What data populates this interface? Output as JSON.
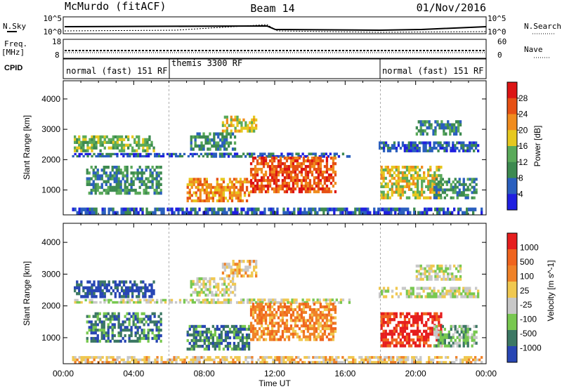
{
  "header": {
    "site": "McMurdo (fitACF)",
    "beam": "Beam 14",
    "date": "01/Nov/2016"
  },
  "summary_panels": {
    "nsky_label": "N.Sky",
    "nsearch_label": "N.Search",
    "nsky_ticks": [
      "10^5",
      "10^0"
    ],
    "nsearch_ticks": [
      "10^5",
      "10^0"
    ],
    "freq_label": "Freq.",
    "freq_unit": "[MHz]",
    "freq_ticks": [
      "18",
      "8"
    ],
    "nave_label": "Nave",
    "nave_ticks": [
      "60",
      "0"
    ],
    "cpid_label": "CPID",
    "cpid_segments": [
      {
        "label": "normal (fast) 151 RF",
        "start_h": 0,
        "end_h": 6
      },
      {
        "label": "themis 3300 RF",
        "start_h": 6,
        "end_h": 18
      },
      {
        "label": "normal (fast) 151 RF",
        "start_h": 18,
        "end_h": 24
      }
    ]
  },
  "colors": {
    "power": [
      "#1f1fe0",
      "#2a5fbe",
      "#3d8a50",
      "#5aaa5a",
      "#e6c820",
      "#f08c1e",
      "#e65014",
      "#dc1414"
    ],
    "velocity": [
      "#2846b4",
      "#3c7864",
      "#78c850",
      "#c8c8c8",
      "#f0c850",
      "#f08228",
      "#f0641e",
      "#e61e1e"
    ]
  },
  "chart_data": [
    {
      "type": "heatmap",
      "title": "Power",
      "ylabel": "Slant Range [km]",
      "xlabel": "Time UT",
      "ylim": [
        180,
        4600
      ],
      "xlim": [
        0,
        24
      ],
      "yticks": [
        1000,
        2000,
        3000,
        4000
      ],
      "xtick_labels": [
        "00:00",
        "04:00",
        "08:00",
        "12:00",
        "16:00",
        "20:00",
        "00:00"
      ],
      "colorbar": {
        "label": "Power [dB]",
        "ticks": [
          "4",
          "8",
          "12",
          "16",
          "20",
          "24",
          "28"
        ]
      },
      "regions": [
        {
          "t0": 0.6,
          "t1": 5.2,
          "r0": 2250,
          "r1": 2800,
          "level": 3
        },
        {
          "t0": 0.5,
          "t1": 8.0,
          "r0": 2080,
          "r1": 2220,
          "level": 1
        },
        {
          "t0": 8.0,
          "t1": 16.3,
          "r0": 2070,
          "r1": 2230,
          "level": 1
        },
        {
          "t0": 17.9,
          "t1": 23.6,
          "r0": 2250,
          "r1": 2600,
          "level": 1
        },
        {
          "t0": 1.3,
          "t1": 5.6,
          "r0": 850,
          "r1": 1800,
          "level": 2
        },
        {
          "t0": 7.0,
          "t1": 10.6,
          "r0": 600,
          "r1": 1400,
          "level": 5
        },
        {
          "t0": 10.6,
          "t1": 15.5,
          "r0": 900,
          "r1": 2100,
          "level": 6
        },
        {
          "t0": 9.0,
          "t1": 11.0,
          "r0": 2900,
          "r1": 3450,
          "level": 4
        },
        {
          "t0": 7.2,
          "t1": 9.8,
          "r0": 2300,
          "r1": 2900,
          "level": 2
        },
        {
          "t0": 18.0,
          "t1": 21.5,
          "r0": 700,
          "r1": 1800,
          "level": 4
        },
        {
          "t0": 20.0,
          "t1": 22.6,
          "r0": 2800,
          "r1": 3300,
          "level": 2
        },
        {
          "t0": 21.0,
          "t1": 23.5,
          "r0": 700,
          "r1": 1400,
          "level": 2
        },
        {
          "t0": 0.5,
          "t1": 23.8,
          "r0": 190,
          "r1": 420,
          "level": 1
        }
      ]
    },
    {
      "type": "heatmap",
      "title": "Velocity",
      "ylabel": "Slant Range [km]",
      "xlabel": "Time UT",
      "ylim": [
        180,
        4600
      ],
      "xlim": [
        0,
        24
      ],
      "yticks": [
        1000,
        2000,
        3000,
        4000
      ],
      "xtick_labels": [
        "00:00",
        "04:00",
        "08:00",
        "12:00",
        "16:00",
        "20:00",
        "00:00"
      ],
      "colorbar": {
        "label": "Velocity [m s^-1]",
        "ticks": [
          "1000",
          "500",
          "100",
          "25",
          "-25",
          "-100",
          "-500",
          "-1000"
        ]
      },
      "regions": [
        {
          "t0": 0.6,
          "t1": 5.2,
          "r0": 2250,
          "r1": 2800,
          "level": 0
        },
        {
          "t0": 0.5,
          "t1": 8.0,
          "r0": 2080,
          "r1": 2220,
          "level": 3
        },
        {
          "t0": 8.0,
          "t1": 16.3,
          "r0": 2070,
          "r1": 2230,
          "level": 3
        },
        {
          "t0": 17.9,
          "t1": 23.6,
          "r0": 2250,
          "r1": 2600,
          "level": 3
        },
        {
          "t0": 1.3,
          "t1": 5.6,
          "r0": 850,
          "r1": 1800,
          "level": 1
        },
        {
          "t0": 7.0,
          "t1": 10.6,
          "r0": 600,
          "r1": 1400,
          "level": 1
        },
        {
          "t0": 10.6,
          "t1": 15.5,
          "r0": 900,
          "r1": 2100,
          "level": 5
        },
        {
          "t0": 9.0,
          "t1": 11.0,
          "r0": 2900,
          "r1": 3450,
          "level": 4
        },
        {
          "t0": 7.2,
          "t1": 9.8,
          "r0": 2300,
          "r1": 2900,
          "level": 3
        },
        {
          "t0": 18.0,
          "t1": 21.5,
          "r0": 700,
          "r1": 1800,
          "level": 7
        },
        {
          "t0": 20.0,
          "t1": 22.6,
          "r0": 2800,
          "r1": 3300,
          "level": 3
        },
        {
          "t0": 21.0,
          "t1": 23.5,
          "r0": 700,
          "r1": 1400,
          "level": 2
        },
        {
          "t0": 0.5,
          "t1": 23.8,
          "r0": 190,
          "r1": 420,
          "level": 4
        }
      ]
    }
  ]
}
